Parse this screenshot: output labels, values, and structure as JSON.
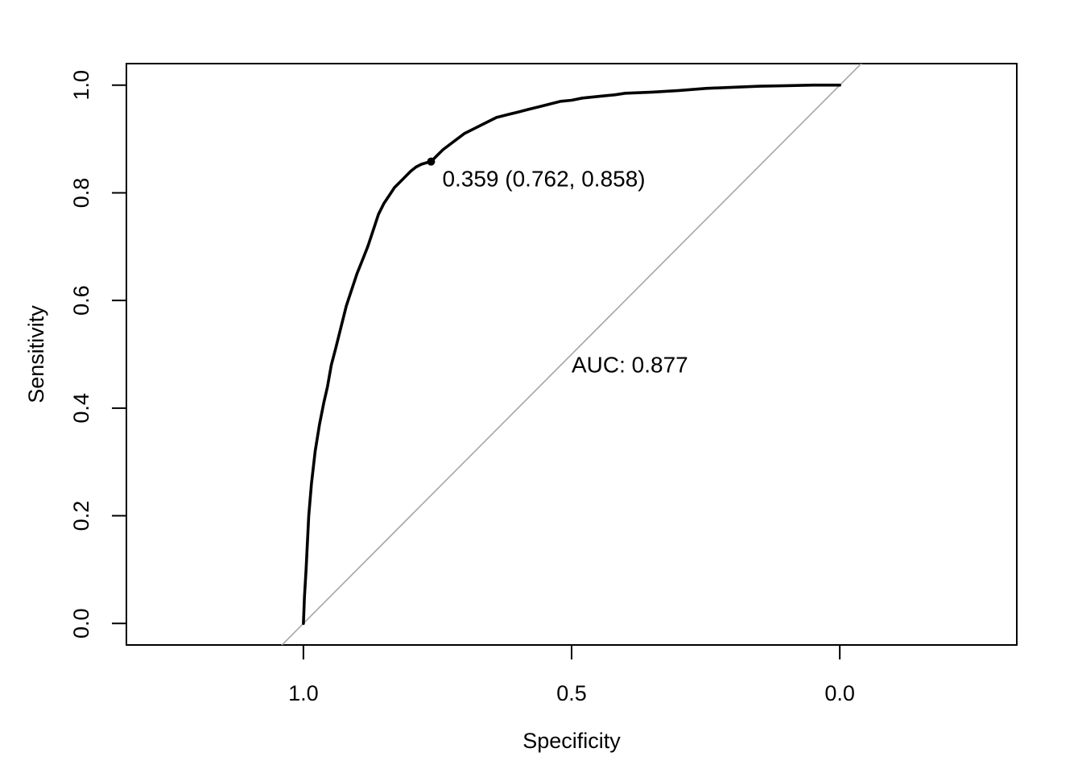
{
  "chart_data": {
    "type": "line",
    "xlabel": "Specificity",
    "ylabel": "Sensitivity",
    "x_reversed": true,
    "xlim": [
      1.33,
      -0.33
    ],
    "ylim": [
      -0.04,
      1.04
    ],
    "x_ticks": [
      1.0,
      0.5,
      0.0
    ],
    "x_tick_labels": [
      "1.0",
      "0.5",
      "0.0"
    ],
    "y_ticks": [
      0.0,
      0.2,
      0.4,
      0.6,
      0.8,
      1.0
    ],
    "y_tick_labels": [
      "0.0",
      "0.2",
      "0.4",
      "0.6",
      "0.8",
      "1.0"
    ],
    "grid": false,
    "series": [
      {
        "color": "#000000",
        "x": [
          1.0,
          0.998,
          0.995,
          0.99,
          0.985,
          0.978,
          0.97,
          0.962,
          0.955,
          0.948,
          0.94,
          0.93,
          0.92,
          0.91,
          0.9,
          0.89,
          0.88,
          0.87,
          0.86,
          0.85,
          0.84,
          0.83,
          0.82,
          0.81,
          0.8,
          0.79,
          0.78,
          0.77,
          0.762,
          0.75,
          0.74,
          0.72,
          0.7,
          0.68,
          0.66,
          0.64,
          0.62,
          0.6,
          0.58,
          0.56,
          0.54,
          0.52,
          0.5,
          0.48,
          0.46,
          0.44,
          0.42,
          0.4,
          0.35,
          0.3,
          0.25,
          0.2,
          0.15,
          0.1,
          0.05,
          0.0
        ],
        "y": [
          0.0,
          0.05,
          0.1,
          0.2,
          0.26,
          0.32,
          0.37,
          0.41,
          0.44,
          0.48,
          0.51,
          0.55,
          0.59,
          0.62,
          0.65,
          0.675,
          0.7,
          0.73,
          0.76,
          0.78,
          0.795,
          0.81,
          0.82,
          0.83,
          0.84,
          0.848,
          0.853,
          0.856,
          0.858,
          0.87,
          0.88,
          0.895,
          0.91,
          0.92,
          0.93,
          0.94,
          0.945,
          0.95,
          0.955,
          0.96,
          0.965,
          0.97,
          0.972,
          0.976,
          0.978,
          0.98,
          0.982,
          0.985,
          0.987,
          0.99,
          0.994,
          0.996,
          0.998,
          0.999,
          1.0,
          1.0
        ]
      }
    ],
    "reference_line": {
      "from": [
        1.0,
        0.0
      ],
      "to": [
        0.0,
        1.0
      ],
      "color": "#a6a6a6"
    },
    "best_point": {
      "x": 0.762,
      "y": 0.858
    },
    "annotations": {
      "threshold_text": "0.359 (0.762, 0.858)",
      "auc_text": "AUC: 0.877",
      "auc_position": [
        0.5,
        0.48
      ]
    }
  }
}
